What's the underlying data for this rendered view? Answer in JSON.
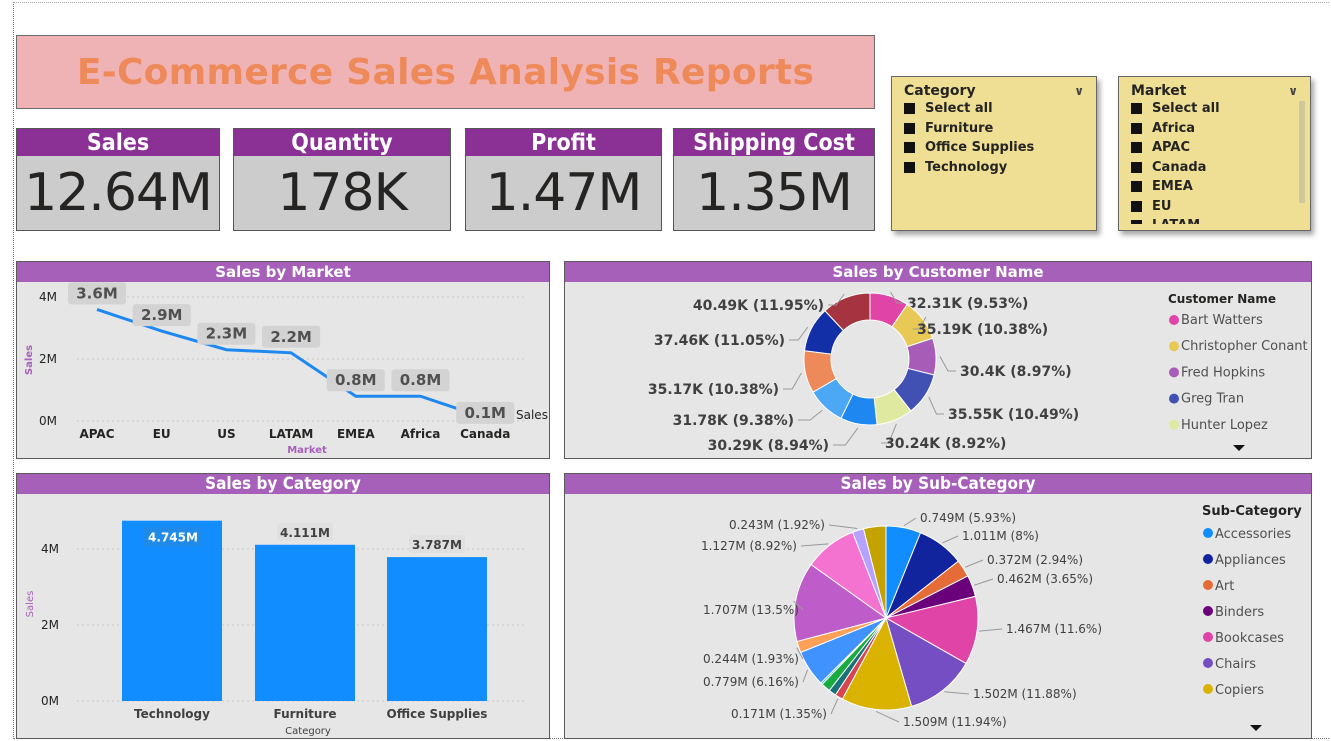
{
  "report_title": "E-Commerce Sales Analysis Reports",
  "kpis": [
    {
      "label": "Sales",
      "value": "12.64M"
    },
    {
      "label": "Quantity",
      "value": "178K"
    },
    {
      "label": "Profit",
      "value": "1.47M"
    },
    {
      "label": "Shipping Cost",
      "value": "1.35M"
    }
  ],
  "slicers": {
    "category": {
      "title": "Category",
      "options": [
        "Select all",
        "Furniture",
        "Office Supplies",
        "Technology"
      ]
    },
    "market": {
      "title": "Market",
      "options": [
        "Select all",
        "Africa",
        "APAC",
        "Canada",
        "EMEA",
        "EU",
        "LATAM"
      ]
    }
  },
  "icons": {
    "dropdown": "chevron-down-icon",
    "checkbox": "checkbox-icon",
    "legend_more": "caret-down-icon"
  },
  "colors": {
    "title_bg": "#f0b3b5",
    "title_text": "#ee8a5a",
    "kpi_header": "#8b3196",
    "kpi_bg": "#cccccc",
    "panel_header": "#a760ba",
    "panel_bg": "#e6e6e6",
    "slicer_bg": "#efdf94",
    "line": "#1e88f0",
    "bar": "#118dff"
  },
  "chart_data": [
    {
      "type": "line",
      "title": "Sales by Market",
      "xlabel": "Market",
      "ylabel": "Sales",
      "categories": [
        "APAC",
        "EU",
        "US",
        "LATAM",
        "EMEA",
        "Africa",
        "Canada"
      ],
      "series": [
        {
          "name": "Sales",
          "values": [
            3.6,
            2.9,
            2.3,
            2.2,
            0.8,
            0.8,
            0.1
          ]
        }
      ],
      "data_labels": [
        "3.6M",
        "2.9M",
        "2.3M",
        "2.2M",
        "0.8M",
        "0.8M",
        "0.1M"
      ],
      "yticks": [
        "0M",
        "2M",
        "4M"
      ],
      "ylim": [
        0,
        4
      ],
      "grid": true
    },
    {
      "type": "pie",
      "title": "Sales by Customer Name",
      "legend_title": "Customer Name",
      "legend_visible": [
        "Bart Watters",
        "Christopher Conant",
        "Fred Hopkins",
        "Greg Tran",
        "Hunter Lopez"
      ],
      "slices": [
        {
          "label": "32.31K (9.53%)",
          "value": 32.31,
          "color": "#e044a7"
        },
        {
          "label": "35.19K (10.38%)",
          "value": 35.19,
          "color": "#e8c955"
        },
        {
          "label": "30.4K (8.97%)",
          "value": 30.4,
          "color": "#a75cb8"
        },
        {
          "label": "35.55K (10.49%)",
          "value": 35.55,
          "color": "#4051b3"
        },
        {
          "label": "30.24K (8.92%)",
          "value": 30.24,
          "color": "#dfeaa0"
        },
        {
          "label": "30.29K (8.94%)",
          "value": 30.29,
          "color": "#1e88f0"
        },
        {
          "label": "31.78K (9.38%)",
          "value": 31.78,
          "color": "#4ca7f5"
        },
        {
          "label": "35.17K (10.38%)",
          "value": 35.17,
          "color": "#ee8a5a"
        },
        {
          "label": "37.46K (11.05%)",
          "value": 37.46,
          "color": "#132fa8"
        },
        {
          "label": "40.49K (11.95%)",
          "value": 40.49,
          "color": "#a63340"
        }
      ]
    },
    {
      "type": "bar",
      "title": "Sales by Category",
      "xlabel": "Category",
      "ylabel": "Sales",
      "categories": [
        "Technology",
        "Furniture",
        "Office Supplies"
      ],
      "values": [
        4.745,
        4.111,
        3.787
      ],
      "data_labels": [
        "4.745M",
        "4.111M",
        "3.787M"
      ],
      "yticks": [
        "0M",
        "2M",
        "4M"
      ],
      "ylim": [
        0,
        5
      ],
      "grid": true
    },
    {
      "type": "pie",
      "title": "Sales by Sub-Category",
      "legend_title": "Sub-Category",
      "legend_visible": [
        "Accessories",
        "Appliances",
        "Art",
        "Binders",
        "Bookcases",
        "Chairs",
        "Copiers"
      ],
      "slices": [
        {
          "label": "0.749M (5.93%)",
          "value": 0.749,
          "color": "#118dff"
        },
        {
          "label": "1.011M (8%)",
          "value": 1.011,
          "color": "#12239e"
        },
        {
          "label": "0.372M (2.94%)",
          "value": 0.372,
          "color": "#e66c37"
        },
        {
          "label": "0.462M (3.65%)",
          "value": 0.462,
          "color": "#6b007b"
        },
        {
          "label": "1.467M (11.6%)",
          "value": 1.467,
          "color": "#e044a7"
        },
        {
          "label": "1.502M (11.88%)",
          "value": 1.502,
          "color": "#744ec2"
        },
        {
          "label": "1.509M (11.94%)",
          "value": 1.509,
          "color": "#d9b300"
        },
        {
          "label": "0.171M (1.35%)",
          "value": 0.171,
          "color": "#d64550"
        },
        {
          "label": "",
          "value": 0.16,
          "color": "#197278"
        },
        {
          "label": "",
          "value": 0.2,
          "color": "#1aab40"
        },
        {
          "label": "",
          "value": 0.04,
          "color": "#15c6f4"
        },
        {
          "label": "0.779M (6.16%)",
          "value": 0.779,
          "color": "#4092ff"
        },
        {
          "label": "0.244M (1.93%)",
          "value": 0.244,
          "color": "#ffa058"
        },
        {
          "label": "1.707M (13.5%)",
          "value": 1.707,
          "color": "#be5dc9"
        },
        {
          "label": "1.127M (8.92%)",
          "value": 1.127,
          "color": "#f472d0"
        },
        {
          "label": "0.243M (1.92%)",
          "value": 0.243,
          "color": "#b5a1ff"
        },
        {
          "label": "",
          "value": 0.48,
          "color": "#c4a200"
        }
      ]
    }
  ]
}
